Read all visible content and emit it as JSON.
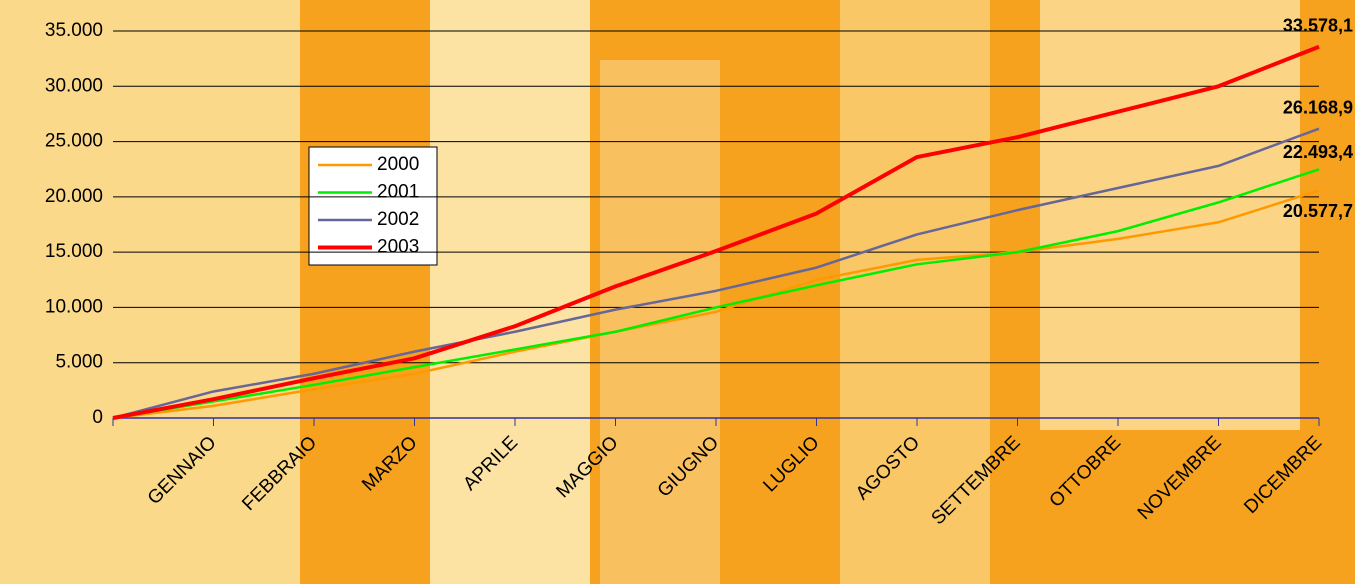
{
  "chart_data": {
    "type": "line",
    "categories": [
      null,
      "GENNAIO",
      "FEBBRAIO",
      "MARZO",
      "APRILE",
      "MAGGIO",
      "GIUGNO",
      "LUGLIO",
      "AGOSTO",
      "SETTEMBRE",
      "OTTOBRE",
      "NOVEMBRE",
      "DICEMBRE"
    ],
    "series": [
      {
        "name": "2000",
        "color": "#ff9900",
        "values": [
          0,
          1100,
          2600,
          4000,
          6000,
          7800,
          9600,
          12500,
          14300,
          15000,
          16200,
          17700,
          20577.7
        ],
        "value_labels": [
          null,
          null,
          null,
          null,
          null,
          null,
          null,
          null,
          null,
          null,
          null,
          null,
          "20.577,7"
        ]
      },
      {
        "name": "2001",
        "color": "#00ee00",
        "values": [
          0,
          1500,
          3000,
          4600,
          6200,
          7800,
          10000,
          12000,
          13900,
          15000,
          16900,
          19500,
          22493.4
        ],
        "value_labels": [
          null,
          null,
          null,
          null,
          null,
          null,
          null,
          null,
          null,
          null,
          null,
          null,
          "22.493,4"
        ]
      },
      {
        "name": "2002",
        "color": "#666699",
        "values": [
          0,
          2400,
          4000,
          6000,
          7800,
          9800,
          11500,
          13600,
          16600,
          18800,
          20800,
          22800,
          26168.9
        ],
        "value_labels": [
          null,
          null,
          null,
          null,
          null,
          null,
          null,
          null,
          null,
          null,
          null,
          null,
          "26.168,9"
        ]
      },
      {
        "name": "2003",
        "color": "#ff0000",
        "values": [
          0,
          1700,
          3600,
          5400,
          8300,
          11900,
          15100,
          18500,
          23600,
          25400,
          27700,
          30000,
          33578.1
        ],
        "value_labels": [
          null,
          null,
          null,
          null,
          null,
          null,
          null,
          null,
          null,
          null,
          null,
          null,
          "33.578,1"
        ]
      }
    ],
    "ylim": [
      0,
      35000
    ],
    "yticks": [
      0,
      {
        "value": 5000,
        "label": "5.000"
      },
      {
        "value": 10000,
        "label": "10.000"
      },
      {
        "value": 15000,
        "label": "15.000"
      },
      {
        "value": 20000,
        "label": "20.000"
      },
      {
        "value": 25000,
        "label": "25.000"
      },
      {
        "value": 30000,
        "label": "30.000"
      },
      {
        "value": 35000,
        "label": "35.000"
      }
    ],
    "grid": true
  }
}
